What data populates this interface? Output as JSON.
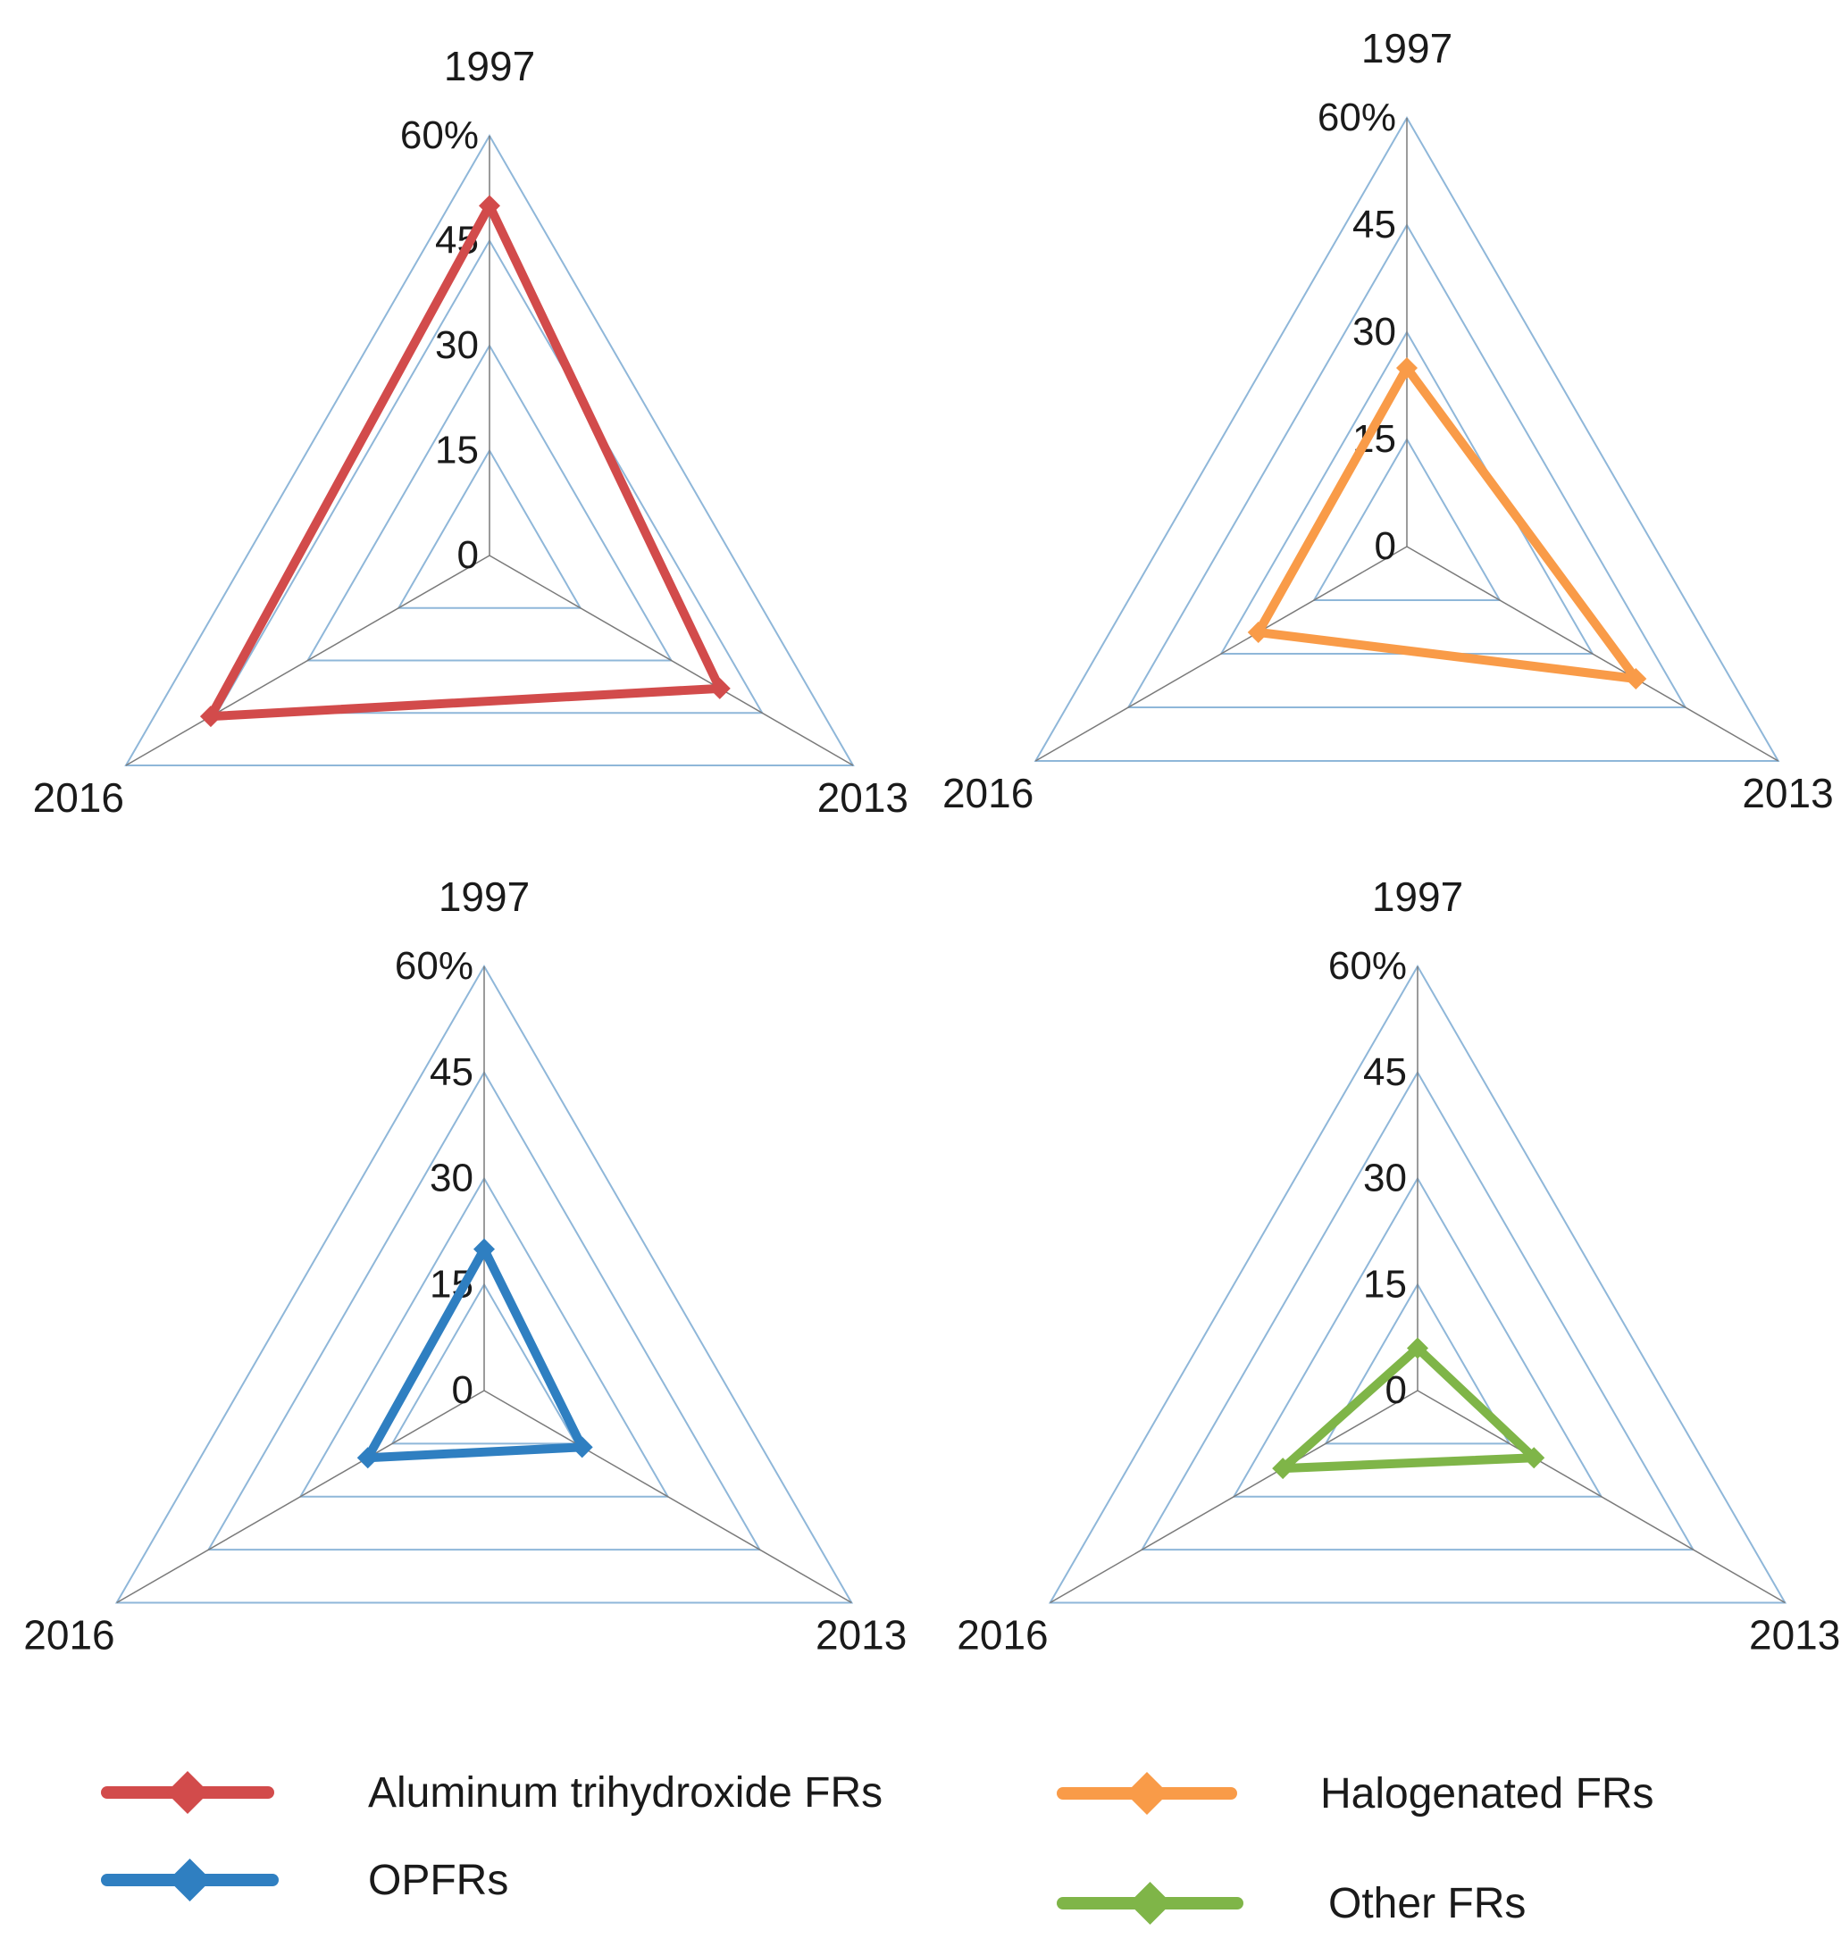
{
  "chart_data": [
    {
      "type": "radar",
      "axes": [
        "1997",
        "2013",
        "2016"
      ],
      "ticks": [
        "0",
        "15",
        "30",
        "45",
        "60%"
      ],
      "rlim": [
        0,
        60
      ],
      "series": [
        {
          "name": "Aluminum trihydroxide FRs",
          "values": [
            50,
            38,
            46
          ]
        }
      ]
    },
    {
      "type": "radar",
      "axes": [
        "1997",
        "2013",
        "2016"
      ],
      "ticks": [
        "0",
        "15",
        "30",
        "45",
        "60%"
      ],
      "rlim": [
        0,
        60
      ],
      "series": [
        {
          "name": "Halogenated FRs",
          "values": [
            25,
            37,
            24
          ]
        }
      ]
    },
    {
      "type": "radar",
      "axes": [
        "1997",
        "2013",
        "2016"
      ],
      "ticks": [
        "0",
        "15",
        "30",
        "45",
        "60%"
      ],
      "rlim": [
        0,
        60
      ],
      "series": [
        {
          "name": "OPFRs",
          "values": [
            20,
            16,
            19
          ]
        }
      ]
    },
    {
      "type": "radar",
      "axes": [
        "1997",
        "2013",
        "2016"
      ],
      "ticks": [
        "0",
        "15",
        "30",
        "45",
        "60%"
      ],
      "rlim": [
        0,
        60
      ],
      "series": [
        {
          "name": "Other FRs",
          "values": [
            6,
            19,
            22
          ]
        }
      ]
    }
  ],
  "legend": [
    {
      "name": "Aluminum trihydroxide FRs",
      "color": "#d24b4b"
    },
    {
      "name": "Halogenated FRs",
      "color": "#f99b48"
    },
    {
      "name": "OPFRs",
      "color": "#2f7fc1"
    },
    {
      "name": "Other FRs",
      "color": "#7fb548"
    }
  ],
  "colors": {
    "grid": "#8fb7d9",
    "spoke": "#7a7a7a"
  }
}
